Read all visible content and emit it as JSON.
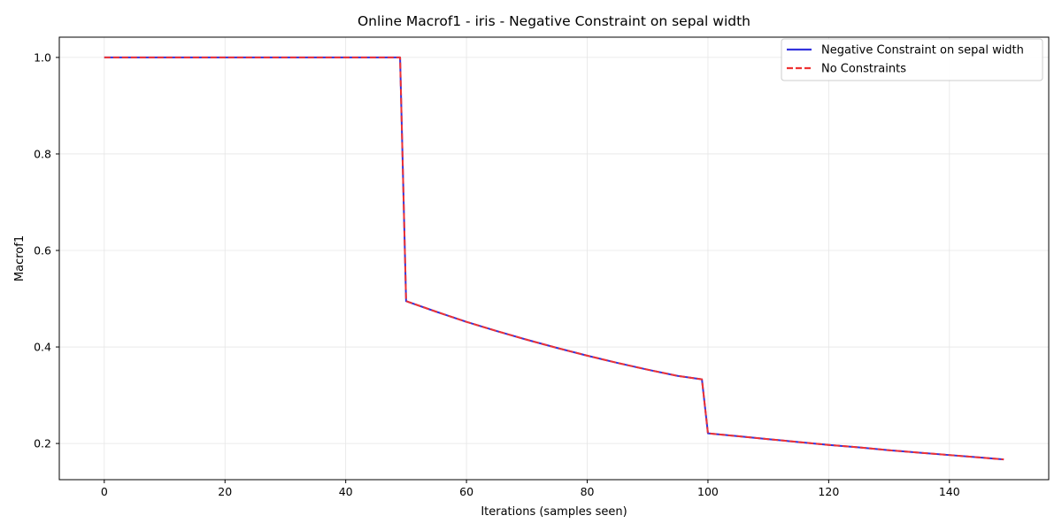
{
  "chart_data": {
    "type": "line",
    "title": "Online Macrof1 - iris - Negative Constraint on sepal width",
    "xlabel": "Iterations (samples seen)",
    "ylabel": "Macrof1",
    "xlim": [
      -7.45,
      156.45
    ],
    "ylim": [
      0.125,
      1.042
    ],
    "xticks": [
      0,
      20,
      40,
      60,
      80,
      100,
      120,
      140
    ],
    "yticks": [
      0.2,
      0.4,
      0.6,
      0.8,
      1.0
    ],
    "ytick_labels": [
      "0.2",
      "0.4",
      "0.6",
      "0.8",
      "1.0"
    ],
    "grid": true,
    "legend_position": "top-right",
    "series": [
      {
        "name": "Negative Constraint on sepal width",
        "color": "#3333dd",
        "style": "solid",
        "x": [
          0,
          49,
          50,
          55,
          60,
          65,
          70,
          75,
          80,
          85,
          90,
          95,
          99,
          100,
          105,
          110,
          115,
          120,
          125,
          130,
          135,
          140,
          145,
          149
        ],
        "y": [
          1.0,
          1.0,
          0.495,
          0.473,
          0.452,
          0.433,
          0.415,
          0.398,
          0.382,
          0.367,
          0.353,
          0.34,
          0.333,
          0.221,
          0.215,
          0.209,
          0.203,
          0.197,
          0.192,
          0.186,
          0.181,
          0.176,
          0.171,
          0.167
        ]
      },
      {
        "name": "No Constraints",
        "color": "#ee3333",
        "style": "dashed",
        "x": [
          0,
          49,
          50,
          55,
          60,
          65,
          70,
          75,
          80,
          85,
          90,
          95,
          99,
          100,
          105,
          110,
          115,
          120,
          125,
          130,
          135,
          140,
          145,
          149
        ],
        "y": [
          1.0,
          1.0,
          0.495,
          0.473,
          0.452,
          0.433,
          0.415,
          0.398,
          0.382,
          0.367,
          0.353,
          0.34,
          0.333,
          0.221,
          0.215,
          0.209,
          0.203,
          0.197,
          0.192,
          0.186,
          0.181,
          0.176,
          0.171,
          0.167
        ]
      }
    ]
  }
}
